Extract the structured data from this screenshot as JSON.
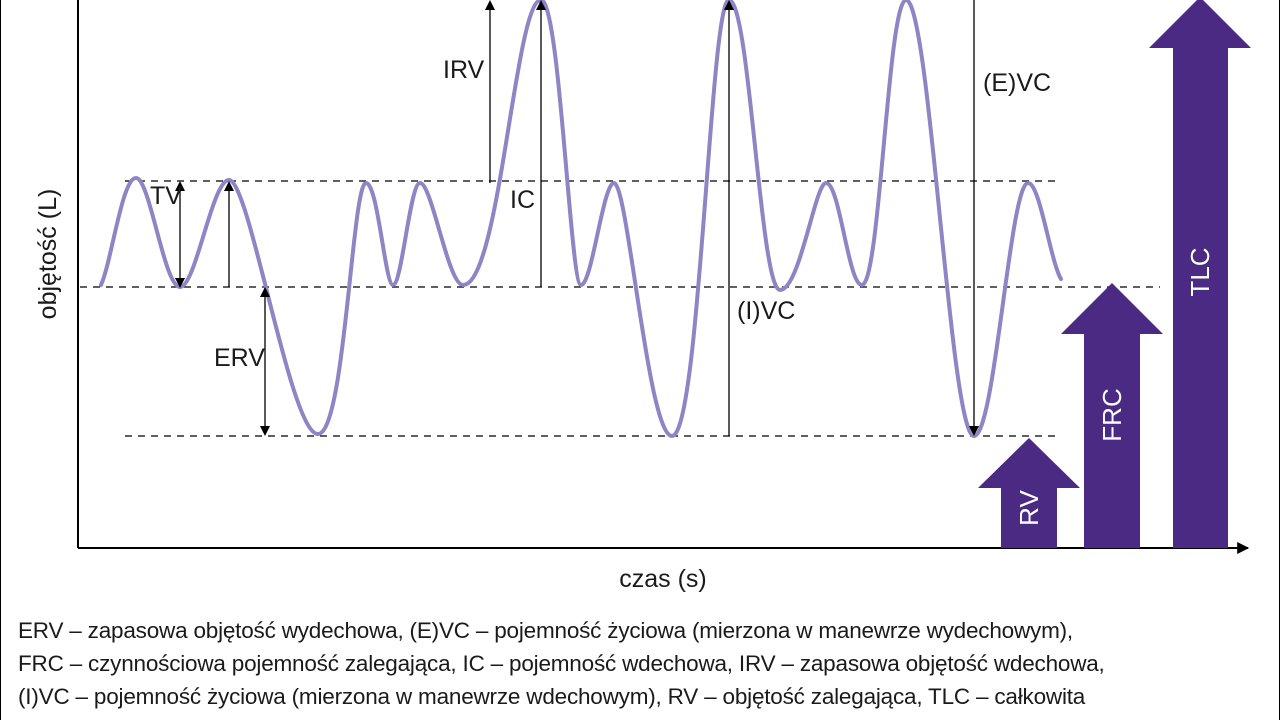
{
  "diagram": {
    "ylabel": "objętość (L)",
    "xlabel": "czas (s)",
    "labels": {
      "tv": "TV",
      "erv": "ERV",
      "irv": "IRV",
      "ic": "IC",
      "ivc": "(I)VC",
      "evc": "(E)VC"
    },
    "bars": {
      "rv": "RV",
      "frc": "FRC",
      "tlc": "TLC"
    },
    "colors": {
      "curve": "#8f84c4",
      "bars": "#4b2a84",
      "lines": "#000000"
    }
  },
  "caption": {
    "lines": [
      "ERV – zapasowa objętość wydechowa, (E)VC – pojemność życiowa (mierzona w manewrze wydechowym),",
      "FRC – czynnościowa pojemność zalegająca, IC – pojemność wdechowa, IRV – zapasowa objętość wdechowa,",
      "(I)VC – pojemność życiowa (mierzona w manewrze wdechowym), RV – objętość zalegająca, TLC – całkowita"
    ]
  }
}
